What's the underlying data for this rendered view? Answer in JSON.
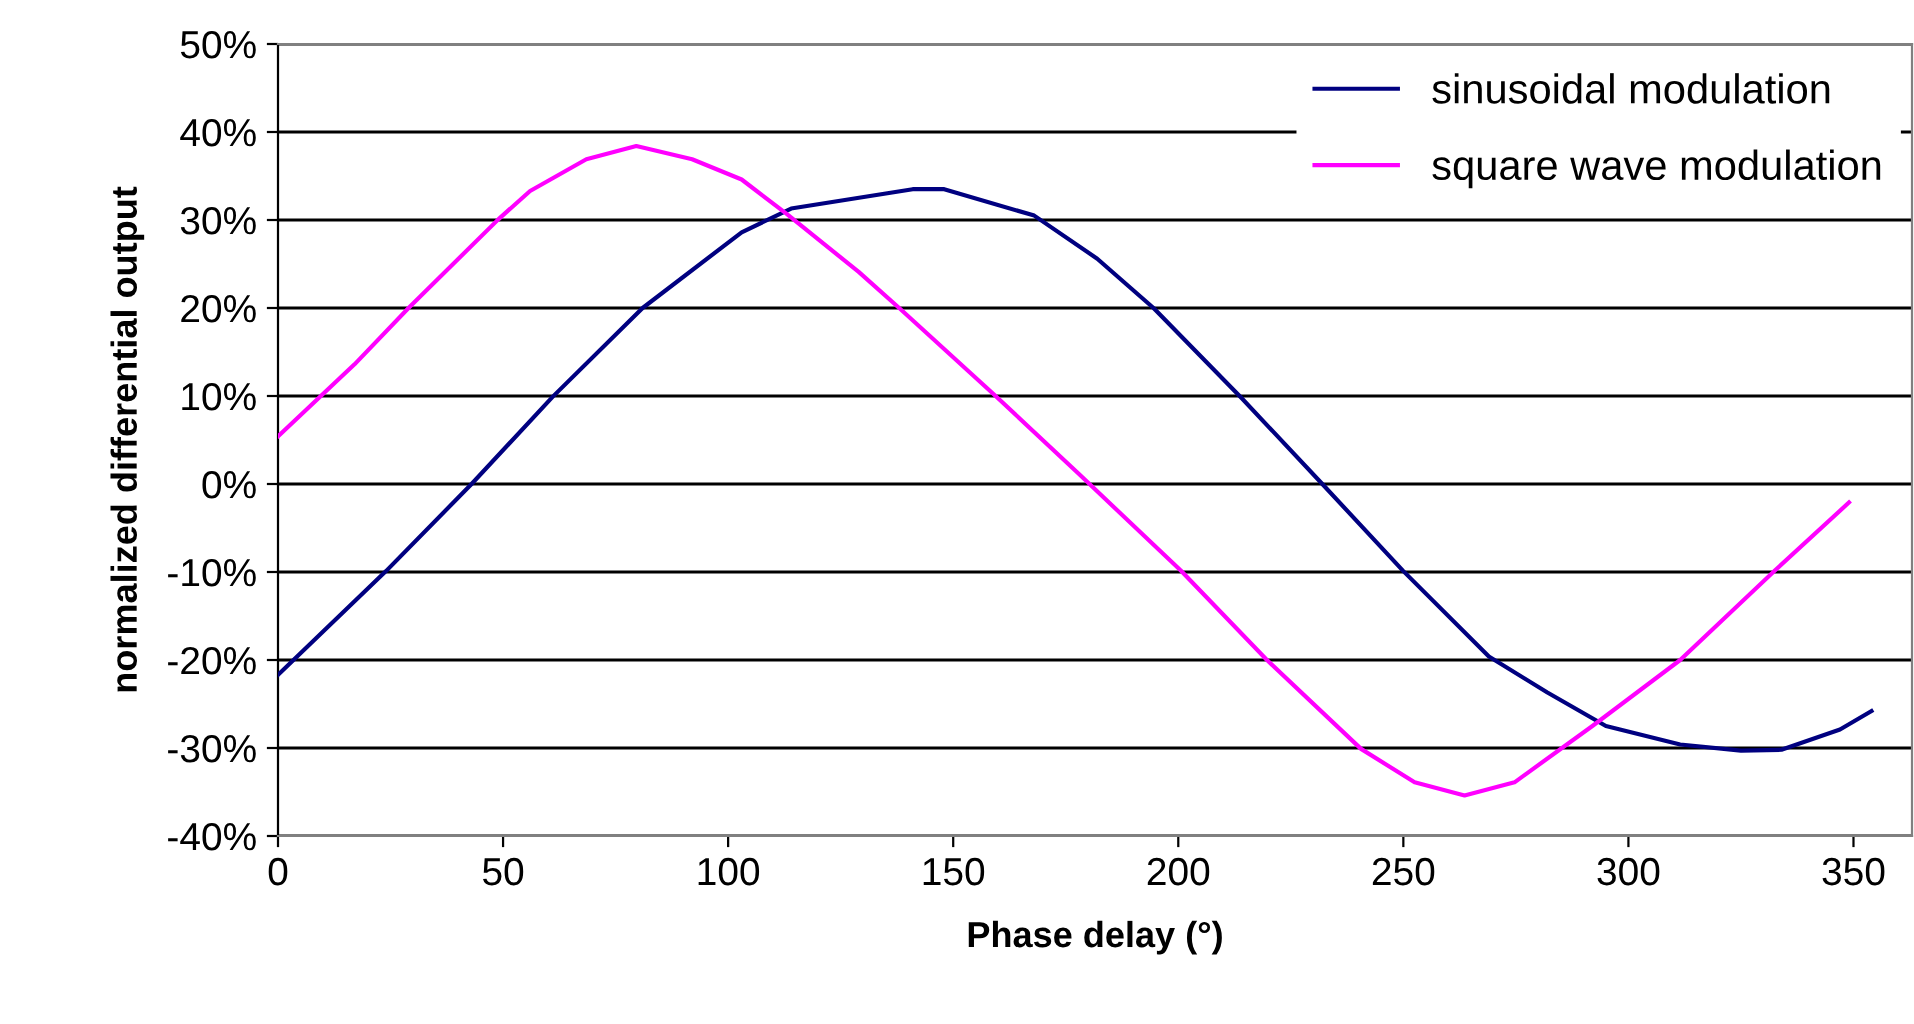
{
  "chart_data": {
    "type": "line",
    "xlabel": "Phase delay (°)",
    "ylabel": "normalized differential output",
    "xlim": [
      0,
      363
    ],
    "xticks": [
      0,
      50,
      100,
      150,
      200,
      250,
      300,
      350
    ],
    "ylim": [
      -40,
      50
    ],
    "yticks": [
      {
        "value": -40,
        "label": "-40%"
      },
      {
        "value": -30,
        "label": "-30%"
      },
      {
        "value": -20,
        "label": "-20%"
      },
      {
        "value": -10,
        "label": "-10%"
      },
      {
        "value": 0,
        "label": "0%"
      },
      {
        "value": 10,
        "label": "10%"
      },
      {
        "value": 20,
        "label": "20%"
      },
      {
        "value": 30,
        "label": "30%"
      },
      {
        "value": 40,
        "label": "40%"
      },
      {
        "value": 50,
        "label": "50%"
      }
    ],
    "grid": "y",
    "legend": "top right",
    "marker": "none",
    "line_style": "solid",
    "series": [
      {
        "name": "sinusoidal modulation",
        "color": "#000080",
        "x": [
          0,
          24,
          43,
          61,
          81,
          103,
          114,
          141,
          148,
          168,
          182,
          194.5,
          214,
          232,
          250,
          269,
          282,
          295,
          311.5,
          325,
          334,
          347,
          354
        ],
        "values": [
          -21.7,
          -9.9,
          0,
          9.9,
          20,
          28.6,
          31.3,
          33.5,
          33.5,
          30.5,
          25.6,
          20,
          9.8,
          0,
          -9.9,
          -19.6,
          -23.7,
          -27.5,
          -29.6,
          -30.3,
          -30.2,
          -27.9,
          -25.8
        ]
      },
      {
        "name": "square wave modulation",
        "color": "#ff00ff",
        "x": [
          0,
          17,
          29,
          49,
          56,
          68.5,
          79.6,
          92,
          103,
          113,
          129,
          138,
          159,
          178,
          200.5,
          219.7,
          240.6,
          252.5,
          263.6,
          274.7,
          292,
          311.5,
          332.6,
          349
        ],
        "values": [
          5.4,
          13.6,
          20,
          30.1,
          33.3,
          36.9,
          38.4,
          36.9,
          34.6,
          30.7,
          24.1,
          20,
          10.2,
          1.1,
          -9.8,
          -20,
          -30.1,
          -33.9,
          -35.4,
          -33.9,
          -27.5,
          -20,
          -9.8,
          -2.1
        ]
      }
    ]
  }
}
